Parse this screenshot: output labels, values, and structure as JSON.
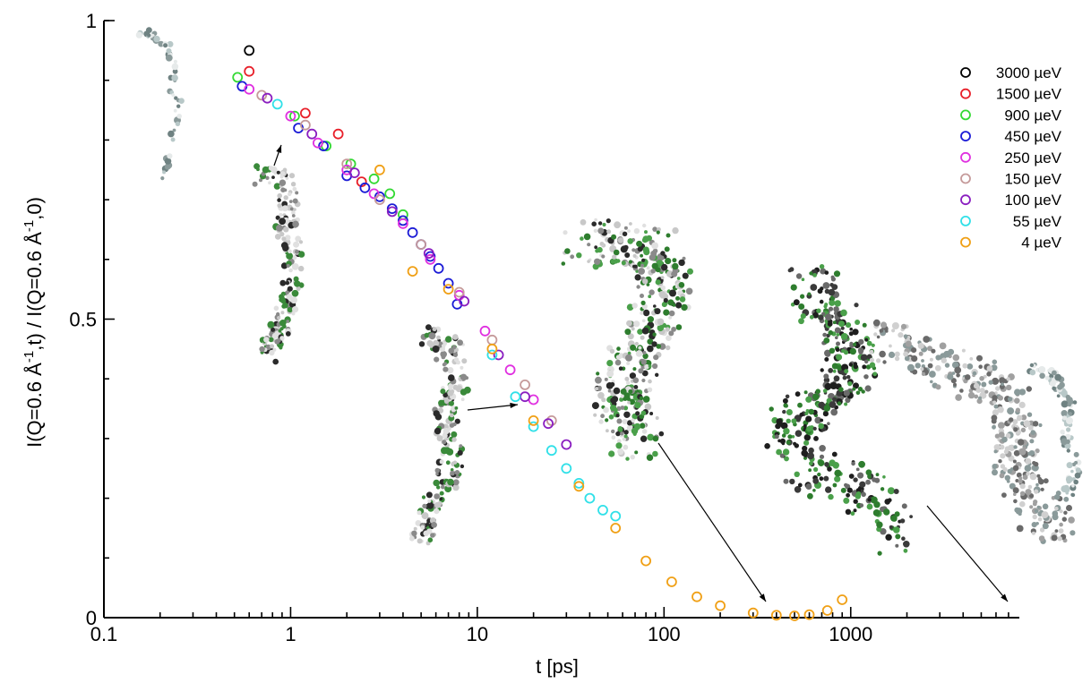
{
  "chart_data": {
    "type": "scatter",
    "title": "",
    "xlabel": "t [ps]",
    "ylabel_parts": {
      "a": "I(Q=0.6 Å",
      "sup1": "-1",
      "b": ",t) / I(Q=0.6 Å",
      "sup2": "-1",
      "c": ",0)"
    },
    "xscale": "log",
    "xlim": [
      0.1,
      8000
    ],
    "ylim": [
      0,
      1
    ],
    "x_ticks": [
      {
        "value": 0.1,
        "label": "0.1"
      },
      {
        "value": 1,
        "label": "1"
      },
      {
        "value": 10,
        "label": "10"
      },
      {
        "value": 100,
        "label": "100"
      },
      {
        "value": 1000,
        "label": "1000"
      }
    ],
    "y_ticks": [
      {
        "value": 0,
        "label": "0"
      },
      {
        "value": 0.5,
        "label": "0.5"
      },
      {
        "value": 1,
        "label": "1"
      }
    ],
    "legend_position": "top-right",
    "series": [
      {
        "name": "3000 µeV",
        "color": "#000000",
        "x": [
          0.6
        ],
        "y": [
          0.95
        ]
      },
      {
        "name": "1500 µeV",
        "color": "#e8202a",
        "x": [
          0.6,
          1.2,
          1.8,
          2.4
        ],
        "y": [
          0.915,
          0.845,
          0.81,
          0.73
        ]
      },
      {
        "name": "900 µeV",
        "color": "#33d933",
        "x": [
          0.52,
          1.05,
          1.55,
          2.1,
          2.8,
          3.4,
          4.0
        ],
        "y": [
          0.905,
          0.84,
          0.79,
          0.76,
          0.735,
          0.71,
          0.675
        ]
      },
      {
        "name": "450 µeV",
        "color": "#1b1bd6",
        "x": [
          0.55,
          1.1,
          1.5,
          2.0,
          2.5,
          3.0,
          3.5,
          4.0,
          4.5,
          5.0,
          5.6,
          6.2,
          7.0,
          7.8
        ],
        "y": [
          0.89,
          0.82,
          0.79,
          0.74,
          0.72,
          0.705,
          0.685,
          0.665,
          0.645,
          0.625,
          0.605,
          0.585,
          0.56,
          0.525
        ]
      },
      {
        "name": "250 µeV",
        "color": "#e030e0",
        "x": [
          0.6,
          1.0,
          1.4,
          2.0,
          2.8,
          4.0,
          5.6,
          8.0,
          11.0,
          15.0,
          20.0
        ],
        "y": [
          0.885,
          0.84,
          0.795,
          0.75,
          0.71,
          0.66,
          0.6,
          0.54,
          0.48,
          0.415,
          0.365
        ]
      },
      {
        "name": "150 µeV",
        "color": "#c59a9a",
        "x": [
          0.7,
          1.2,
          2.0,
          3.0,
          5.0,
          8.0,
          12.0,
          18.0,
          25.0
        ],
        "y": [
          0.875,
          0.825,
          0.76,
          0.7,
          0.625,
          0.545,
          0.465,
          0.39,
          0.33
        ]
      },
      {
        "name": "100 µeV",
        "color": "#8a1ec0",
        "x": [
          0.75,
          1.3,
          2.2,
          3.5,
          5.5,
          8.5,
          13.0,
          18.0,
          24.0,
          30.0
        ],
        "y": [
          0.87,
          0.81,
          0.745,
          0.68,
          0.61,
          0.53,
          0.44,
          0.37,
          0.325,
          0.29
        ]
      },
      {
        "name": "55 µeV",
        "color": "#30e0e8",
        "x": [
          0.85,
          12.0,
          16.0,
          20.0,
          25.0,
          30.0,
          35.0,
          40.0,
          47.0,
          55.0
        ],
        "y": [
          0.86,
          0.44,
          0.37,
          0.32,
          0.28,
          0.25,
          0.225,
          0.2,
          0.18,
          0.17
        ]
      },
      {
        "name": "4 µeV",
        "color": "#f0a016",
        "x": [
          3.0,
          4.5,
          7.0,
          12.0,
          20.0,
          35.0,
          55.0,
          80.0,
          110.0,
          150.0,
          200.0,
          300.0,
          400.0,
          500.0,
          600.0,
          750.0,
          900.0
        ],
        "y": [
          0.75,
          0.58,
          0.55,
          0.45,
          0.33,
          0.22,
          0.15,
          0.095,
          0.06,
          0.035,
          0.02,
          0.008,
          0.004,
          0.003,
          0.005,
          0.012,
          0.03
        ]
      }
    ]
  }
}
